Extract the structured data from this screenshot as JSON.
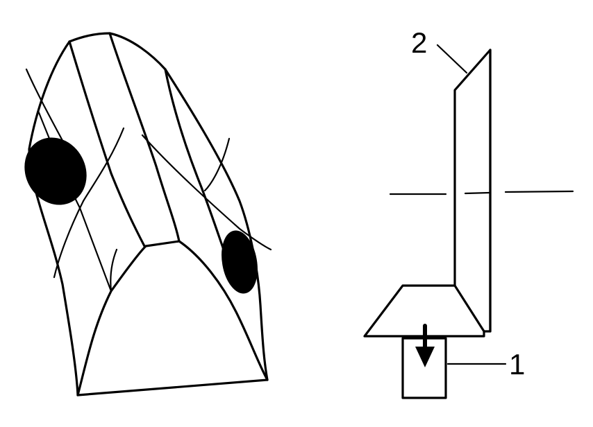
{
  "figure": {
    "labels": {
      "label_1": "1",
      "label_2": "2"
    },
    "colors": {
      "ink": "#000000",
      "background": "#ffffff"
    },
    "icons": {
      "arrow": "down-arrow-icon"
    }
  }
}
